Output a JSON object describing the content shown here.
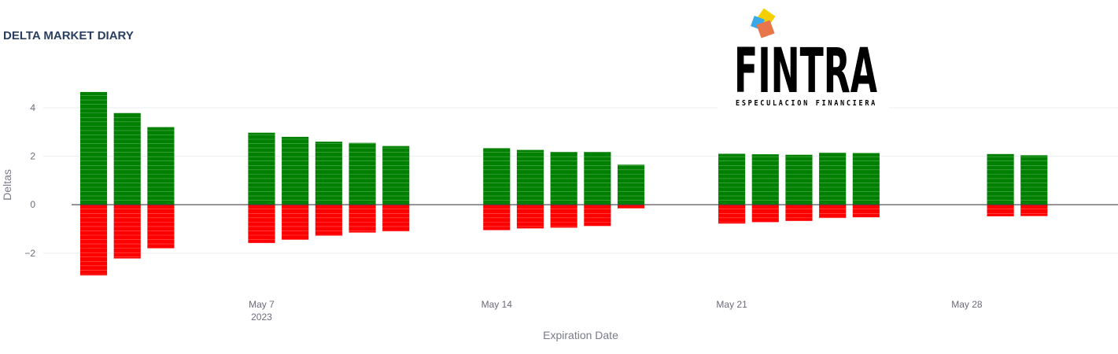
{
  "chart_data": {
    "type": "bar",
    "title": "DELTA MARKET DIARY",
    "xlabel": "Expiration Date",
    "ylabel": "Deltas",
    "barmode": "relative",
    "x_ticks": [
      {
        "date": "2023-05-07",
        "label": "May 7",
        "sublabel": "2023"
      },
      {
        "date": "2023-05-14",
        "label": "May 14",
        "sublabel": ""
      },
      {
        "date": "2023-05-21",
        "label": "May 21",
        "sublabel": ""
      },
      {
        "date": "2023-05-28",
        "label": "May 28",
        "sublabel": ""
      }
    ],
    "y_ticks": [
      -2,
      0,
      2,
      4
    ],
    "y_tick_labels": [
      "−2",
      "0",
      "2",
      "4"
    ],
    "ylim": [
      -3.5,
      5.2
    ],
    "xlim": [
      "2023-04-30T12:00",
      "2023-06-01T12:00"
    ],
    "series": [
      {
        "name": "positive",
        "color": "#008000",
        "x": [
          "2023-05-02",
          "2023-05-03",
          "2023-05-04",
          "2023-05-07",
          "2023-05-08",
          "2023-05-09",
          "2023-05-10",
          "2023-05-11",
          "2023-05-14",
          "2023-05-15",
          "2023-05-16",
          "2023-05-17",
          "2023-05-18",
          "2023-05-21",
          "2023-05-22",
          "2023-05-23",
          "2023-05-24",
          "2023-05-25",
          "2023-05-29",
          "2023-05-30"
        ],
        "values": [
          4.65,
          3.78,
          3.2,
          2.97,
          2.8,
          2.6,
          2.55,
          2.42,
          2.33,
          2.26,
          2.18,
          2.18,
          1.65,
          2.1,
          2.08,
          2.06,
          2.14,
          2.13,
          2.09,
          2.04
        ]
      },
      {
        "name": "negative",
        "color": "#ff0000",
        "x": [
          "2023-05-02",
          "2023-05-03",
          "2023-05-04",
          "2023-05-07",
          "2023-05-08",
          "2023-05-09",
          "2023-05-10",
          "2023-05-11",
          "2023-05-14",
          "2023-05-15",
          "2023-05-16",
          "2023-05-17",
          "2023-05-18",
          "2023-05-21",
          "2023-05-22",
          "2023-05-23",
          "2023-05-24",
          "2023-05-25",
          "2023-05-29",
          "2023-05-30"
        ],
        "values": [
          -2.92,
          -2.22,
          -1.8,
          -1.58,
          -1.45,
          -1.28,
          -1.15,
          -1.1,
          -1.05,
          -0.98,
          -0.95,
          -0.88,
          -0.15,
          -0.78,
          -0.72,
          -0.67,
          -0.55,
          -0.52,
          -0.48,
          -0.47
        ]
      }
    ],
    "grid": true,
    "zero_line": true
  },
  "logo": {
    "name": "FINTRA",
    "tagline": "ESPECULACION FINANCIERA",
    "colors": [
      "#f5d000",
      "#3aa9e8",
      "#e8764a"
    ]
  }
}
